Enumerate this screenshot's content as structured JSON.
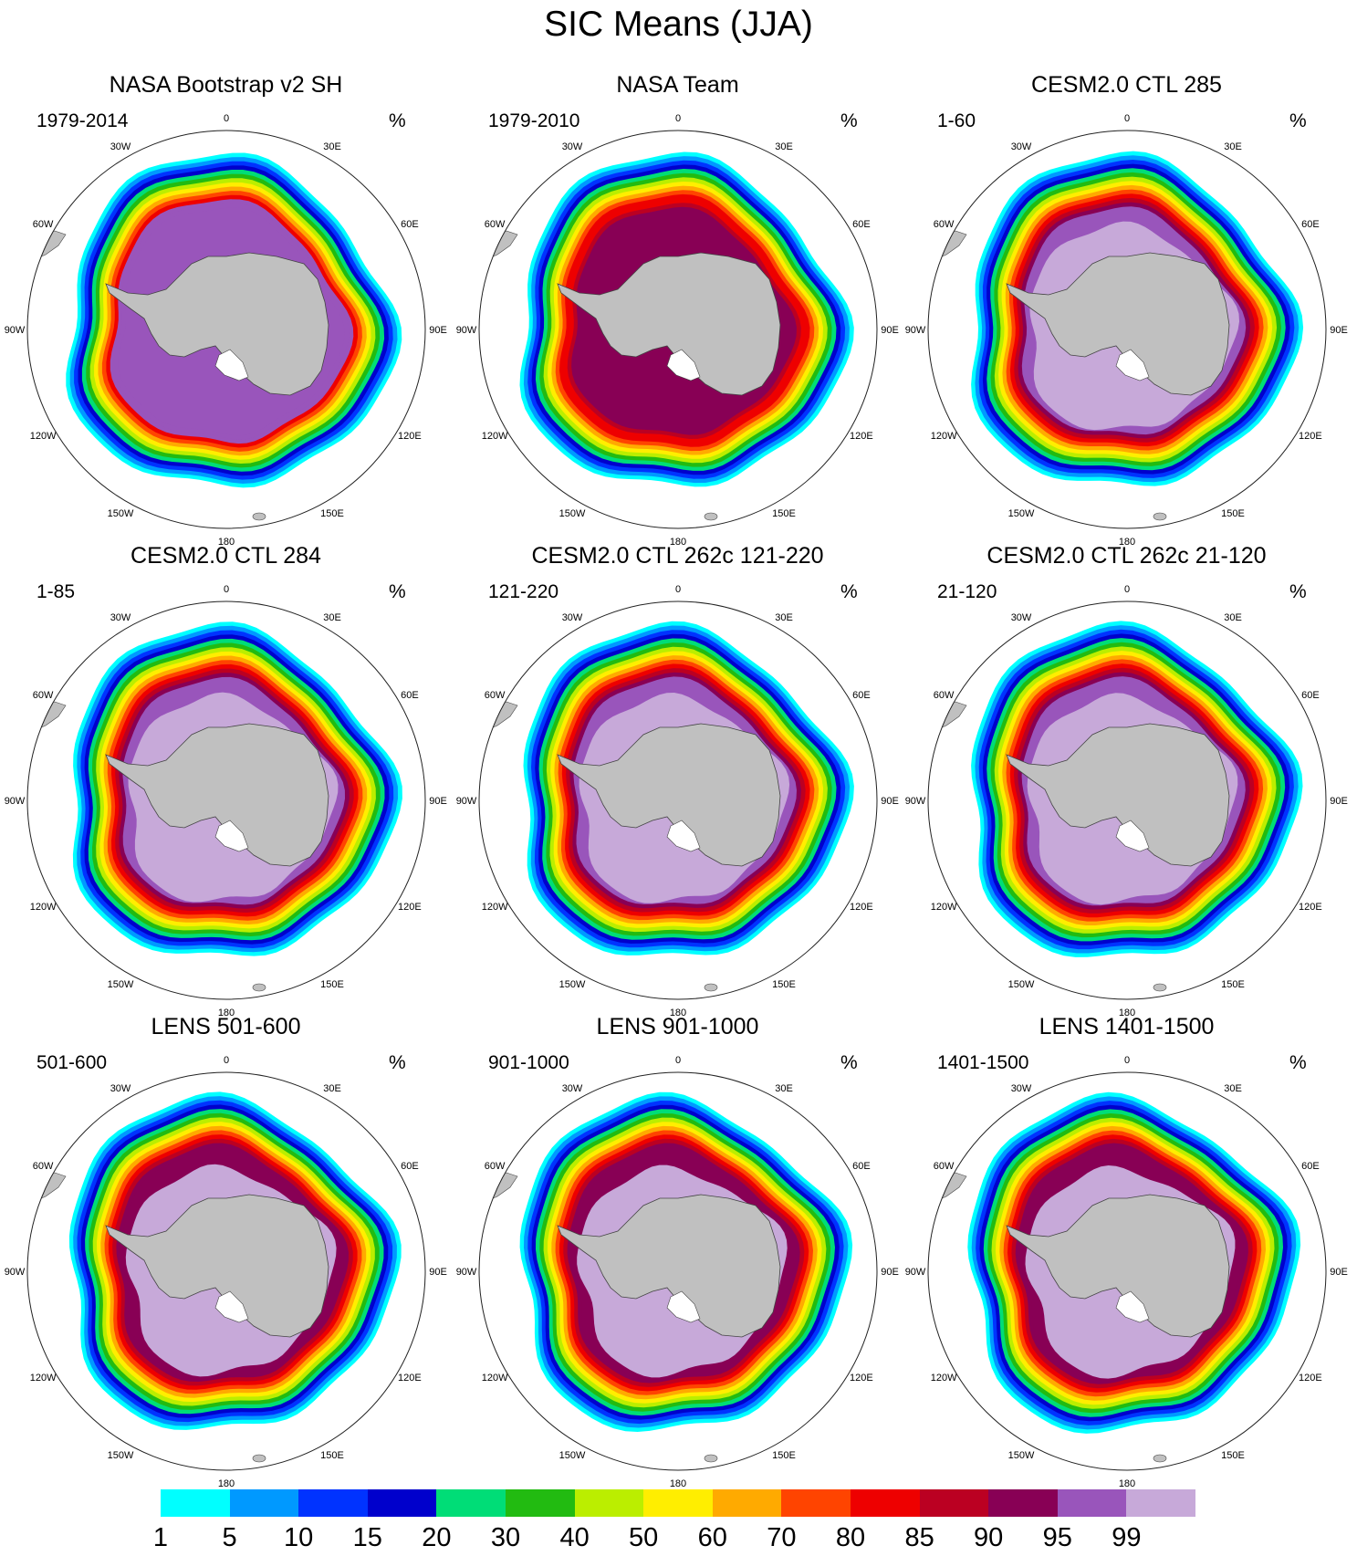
{
  "title": "SIC Means (JJA)",
  "panels": [
    {
      "title": "NASA Bootstrap v2 SH",
      "left": "1979-2014",
      "right": "%",
      "style": "bootstrap"
    },
    {
      "title": "NASA Team",
      "left": "1979-2010",
      "right": "%",
      "style": "team"
    },
    {
      "title": "CESM2.0 CTL 285",
      "left": "1-60",
      "right": "%",
      "style": "model"
    },
    {
      "title": "CESM2.0 CTL 284",
      "left": "1-85",
      "right": "%",
      "style": "model"
    },
    {
      "title": "CESM2.0 CTL 262c 121-220",
      "left": "121-220",
      "right": "%",
      "style": "model"
    },
    {
      "title": "CESM2.0 CTL 262c 21-120",
      "left": "21-120",
      "right": "%",
      "style": "model"
    },
    {
      "title": "LENS 501-600",
      "left": "501-600",
      "right": "%",
      "style": "lens"
    },
    {
      "title": "LENS 901-1000",
      "left": "901-1000",
      "right": "%",
      "style": "lens"
    },
    {
      "title": "LENS 1401-1500",
      "left": "1401-1500",
      "right": "%",
      "style": "lens"
    }
  ],
  "longitude_labels": [
    "0",
    "30E",
    "60E",
    "90E",
    "120E",
    "150E",
    "180",
    "150W",
    "120W",
    "90W",
    "60W",
    "30W"
  ],
  "colorbar": {
    "levels": [
      "1",
      "5",
      "10",
      "15",
      "20",
      "30",
      "40",
      "50",
      "60",
      "70",
      "80",
      "85",
      "90",
      "95",
      "99"
    ],
    "colors": [
      "#00ffff",
      "#0099ff",
      "#0033ff",
      "#0000cc",
      "#00dd77",
      "#22bb11",
      "#bbee00",
      "#ffee00",
      "#ffaa00",
      "#ff4400",
      "#ee0000",
      "#bb0022",
      "#880055",
      "#9955bb",
      "#c7a9d9"
    ]
  },
  "land_color": "#c0c0c0"
}
